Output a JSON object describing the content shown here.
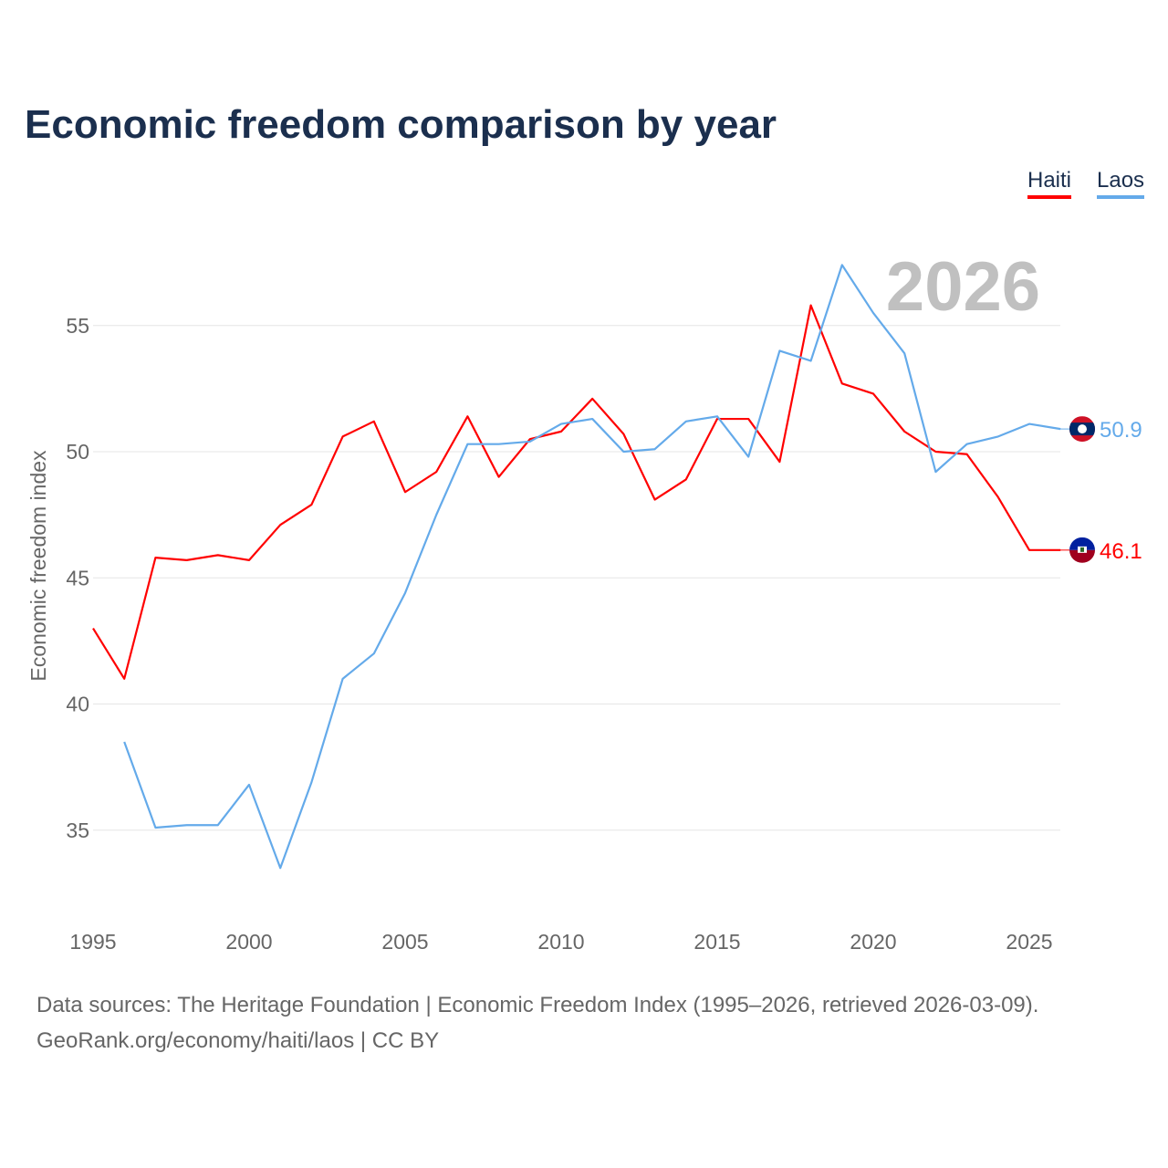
{
  "title": "Economic freedom comparison by year",
  "footer": {
    "line1": "Data sources: The Heritage Foundation | Economic Freedom Index (1995–2026, retrieved 2026-03-09).",
    "line2": "GeoRank.org/economy/haiti/laos | CC BY"
  },
  "chart_data": {
    "type": "line",
    "title": "Economic freedom comparison by year",
    "xlabel": "",
    "ylabel": "Economic freedom index",
    "watermark_year": "2026",
    "xlim": [
      1995,
      2026
    ],
    "ylim": [
      32,
      58
    ],
    "xticks": [
      "1995",
      "2000",
      "2005",
      "2010",
      "2015",
      "2020",
      "2025"
    ],
    "yticks": [
      "35",
      "40",
      "45",
      "50",
      "55"
    ],
    "grid": true,
    "legend_position": "top-right",
    "x": [
      1995,
      1996,
      1997,
      1998,
      1999,
      2000,
      2001,
      2002,
      2003,
      2004,
      2005,
      2006,
      2007,
      2008,
      2009,
      2010,
      2011,
      2012,
      2013,
      2014,
      2015,
      2016,
      2017,
      2018,
      2019,
      2020,
      2021,
      2022,
      2023,
      2024,
      2025,
      2026
    ],
    "series": [
      {
        "name": "Haiti",
        "color": "#ff0000",
        "end_label": "46.1",
        "values": [
          43.0,
          41.0,
          45.8,
          45.7,
          45.9,
          45.7,
          47.1,
          47.9,
          50.6,
          51.2,
          48.4,
          49.2,
          51.4,
          49.0,
          50.5,
          50.8,
          52.1,
          50.7,
          48.1,
          48.9,
          51.3,
          51.3,
          49.6,
          55.8,
          52.7,
          52.3,
          50.8,
          50.0,
          49.9,
          48.2,
          46.1,
          46.1
        ]
      },
      {
        "name": "Laos",
        "color": "#64aaea",
        "end_label": "50.9",
        "values": [
          null,
          38.5,
          35.1,
          35.2,
          35.2,
          36.8,
          33.5,
          36.9,
          41.0,
          42.0,
          44.4,
          47.5,
          50.3,
          50.3,
          50.4,
          51.1,
          51.3,
          50.0,
          50.1,
          51.2,
          51.4,
          49.8,
          54.0,
          53.6,
          57.4,
          55.5,
          53.9,
          49.2,
          50.3,
          50.6,
          51.1,
          50.9
        ]
      }
    ]
  }
}
